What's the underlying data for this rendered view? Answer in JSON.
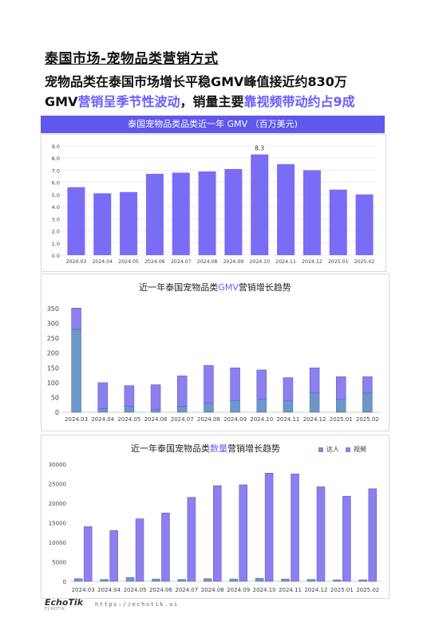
{
  "doc": {
    "title": "泰国市场-宠物品类营销方式",
    "line1": "宠物品类在泰国市场增长平稳GMV峰值接近约830万",
    "line2_a": "GMV",
    "line2_b": "营销呈季节性波动",
    "line2_c": "，销量主要",
    "line2_d": "靠视频带动约占9成",
    "footer_brand": "EchoTik",
    "footer_sub": "ECHOTIK",
    "footer_url": "https://echotik.ai"
  },
  "colors": {
    "accent": "#6a5cff",
    "bar": "#7b6cf6",
    "header": "#5f57ee",
    "kol": "#6e96c8",
    "video": "#8b80ee"
  },
  "chart_data": [
    {
      "type": "bar",
      "title": "泰国宠物品类品类近一年 GMV （百万美元)",
      "categories": [
        "2024.03",
        "2024.04",
        "2024.05",
        "2024.06",
        "2024.07",
        "2024.08",
        "2024.09",
        "2024.10",
        "2024.11",
        "2024.12",
        "2025.01",
        "2025.02"
      ],
      "values": [
        5.6,
        5.1,
        5.2,
        6.7,
        6.8,
        6.9,
        7.1,
        8.3,
        7.5,
        7.0,
        5.4,
        5.0
      ],
      "data_labels": [
        "",
        "",
        "",
        "",
        "",
        "",
        "",
        "8.3",
        "",
        "",
        "",
        ""
      ],
      "ylim": [
        0,
        9
      ],
      "yticks": [
        "0.0",
        "1.0",
        "2.0",
        "3.0",
        "4.0",
        "5.0",
        "6.0",
        "7.0",
        "8.0",
        "9.0"
      ],
      "grid": true
    },
    {
      "type": "bar",
      "stacked": true,
      "title_a": "近一年泰国宠物品类",
      "title_b": "GMV",
      "title_c": "营销增长趋势",
      "categories": [
        "2024.03",
        "2024.04",
        "2024.05",
        "2024.06",
        "2024.07",
        "2024.08",
        "2024.09",
        "2024.10",
        "2024.11",
        "2024.12",
        "2025.01",
        "2025.02"
      ],
      "series": [
        {
          "values": [
            280,
            12,
            20,
            10,
            20,
            30,
            40,
            45,
            40,
            65,
            45,
            65
          ]
        },
        {
          "values": [
            72,
            88,
            70,
            83,
            103,
            128,
            110,
            98,
            77,
            85,
            75,
            55
          ]
        }
      ],
      "ylim": [
        0,
        350
      ],
      "yticks": [
        "0",
        "50",
        "100",
        "150",
        "200",
        "250",
        "300",
        "350"
      ]
    },
    {
      "type": "bar",
      "title_a": "近一年泰国宠物品类",
      "title_b": "数量",
      "title_c": "营销增长趋势",
      "categories": [
        "2024.03",
        "2024.04",
        "2024.05",
        "2024.06",
        "2024.07",
        "2024.08",
        "2024.09",
        "2024.10",
        "2024.11",
        "2024.12",
        "2025.01",
        "2025.02"
      ],
      "series": [
        {
          "name": "达人",
          "values": [
            700,
            500,
            1000,
            600,
            500,
            700,
            600,
            800,
            600,
            500,
            400,
            400
          ]
        },
        {
          "name": "视频",
          "values": [
            14000,
            13000,
            16000,
            17500,
            21500,
            24500,
            24700,
            27700,
            27500,
            24200,
            21800,
            23700
          ]
        }
      ],
      "legend": "top-right",
      "ylim": [
        0,
        30000
      ],
      "yticks": [
        "0",
        "5000",
        "10000",
        "15000",
        "20000",
        "25000",
        "30000"
      ]
    }
  ]
}
